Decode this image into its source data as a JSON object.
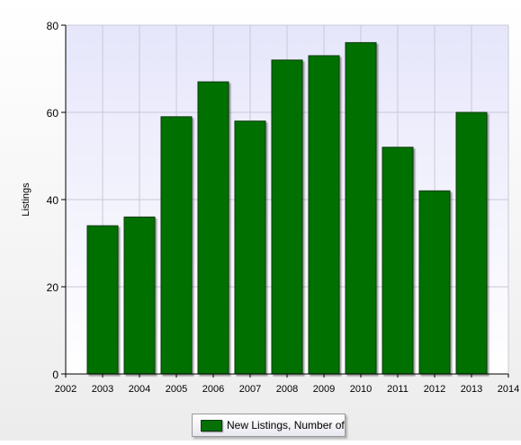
{
  "chart_data": {
    "type": "bar",
    "title": "",
    "xlabel": "",
    "ylabel": "Listings",
    "x_ticks": [
      "2002",
      "2003",
      "2004",
      "2005",
      "2006",
      "2007",
      "2008",
      "2009",
      "2010",
      "2011",
      "2012",
      "2013",
      "2014"
    ],
    "categories": [
      "2003",
      "2004",
      "2005",
      "2006",
      "2007",
      "2008",
      "2009",
      "2010",
      "2011",
      "2012",
      "2013"
    ],
    "series": [
      {
        "name": "New Listings, Number of",
        "values": [
          34,
          36,
          59,
          67,
          58,
          72,
          73,
          76,
          52,
          42,
          60
        ]
      }
    ],
    "y_ticks": [
      "0",
      "20",
      "40",
      "60",
      "80"
    ],
    "ylim": [
      0,
      80
    ],
    "xlim": [
      2002,
      2014
    ],
    "grid": true,
    "legend_position": "bottom-center",
    "colors": {
      "bar": "#067006",
      "bar_border": "#0a3a0a",
      "plot_background_top": "#e6e6fb",
      "plot_background_bottom": "#ffffff",
      "grid": "#c8c8d8"
    }
  }
}
